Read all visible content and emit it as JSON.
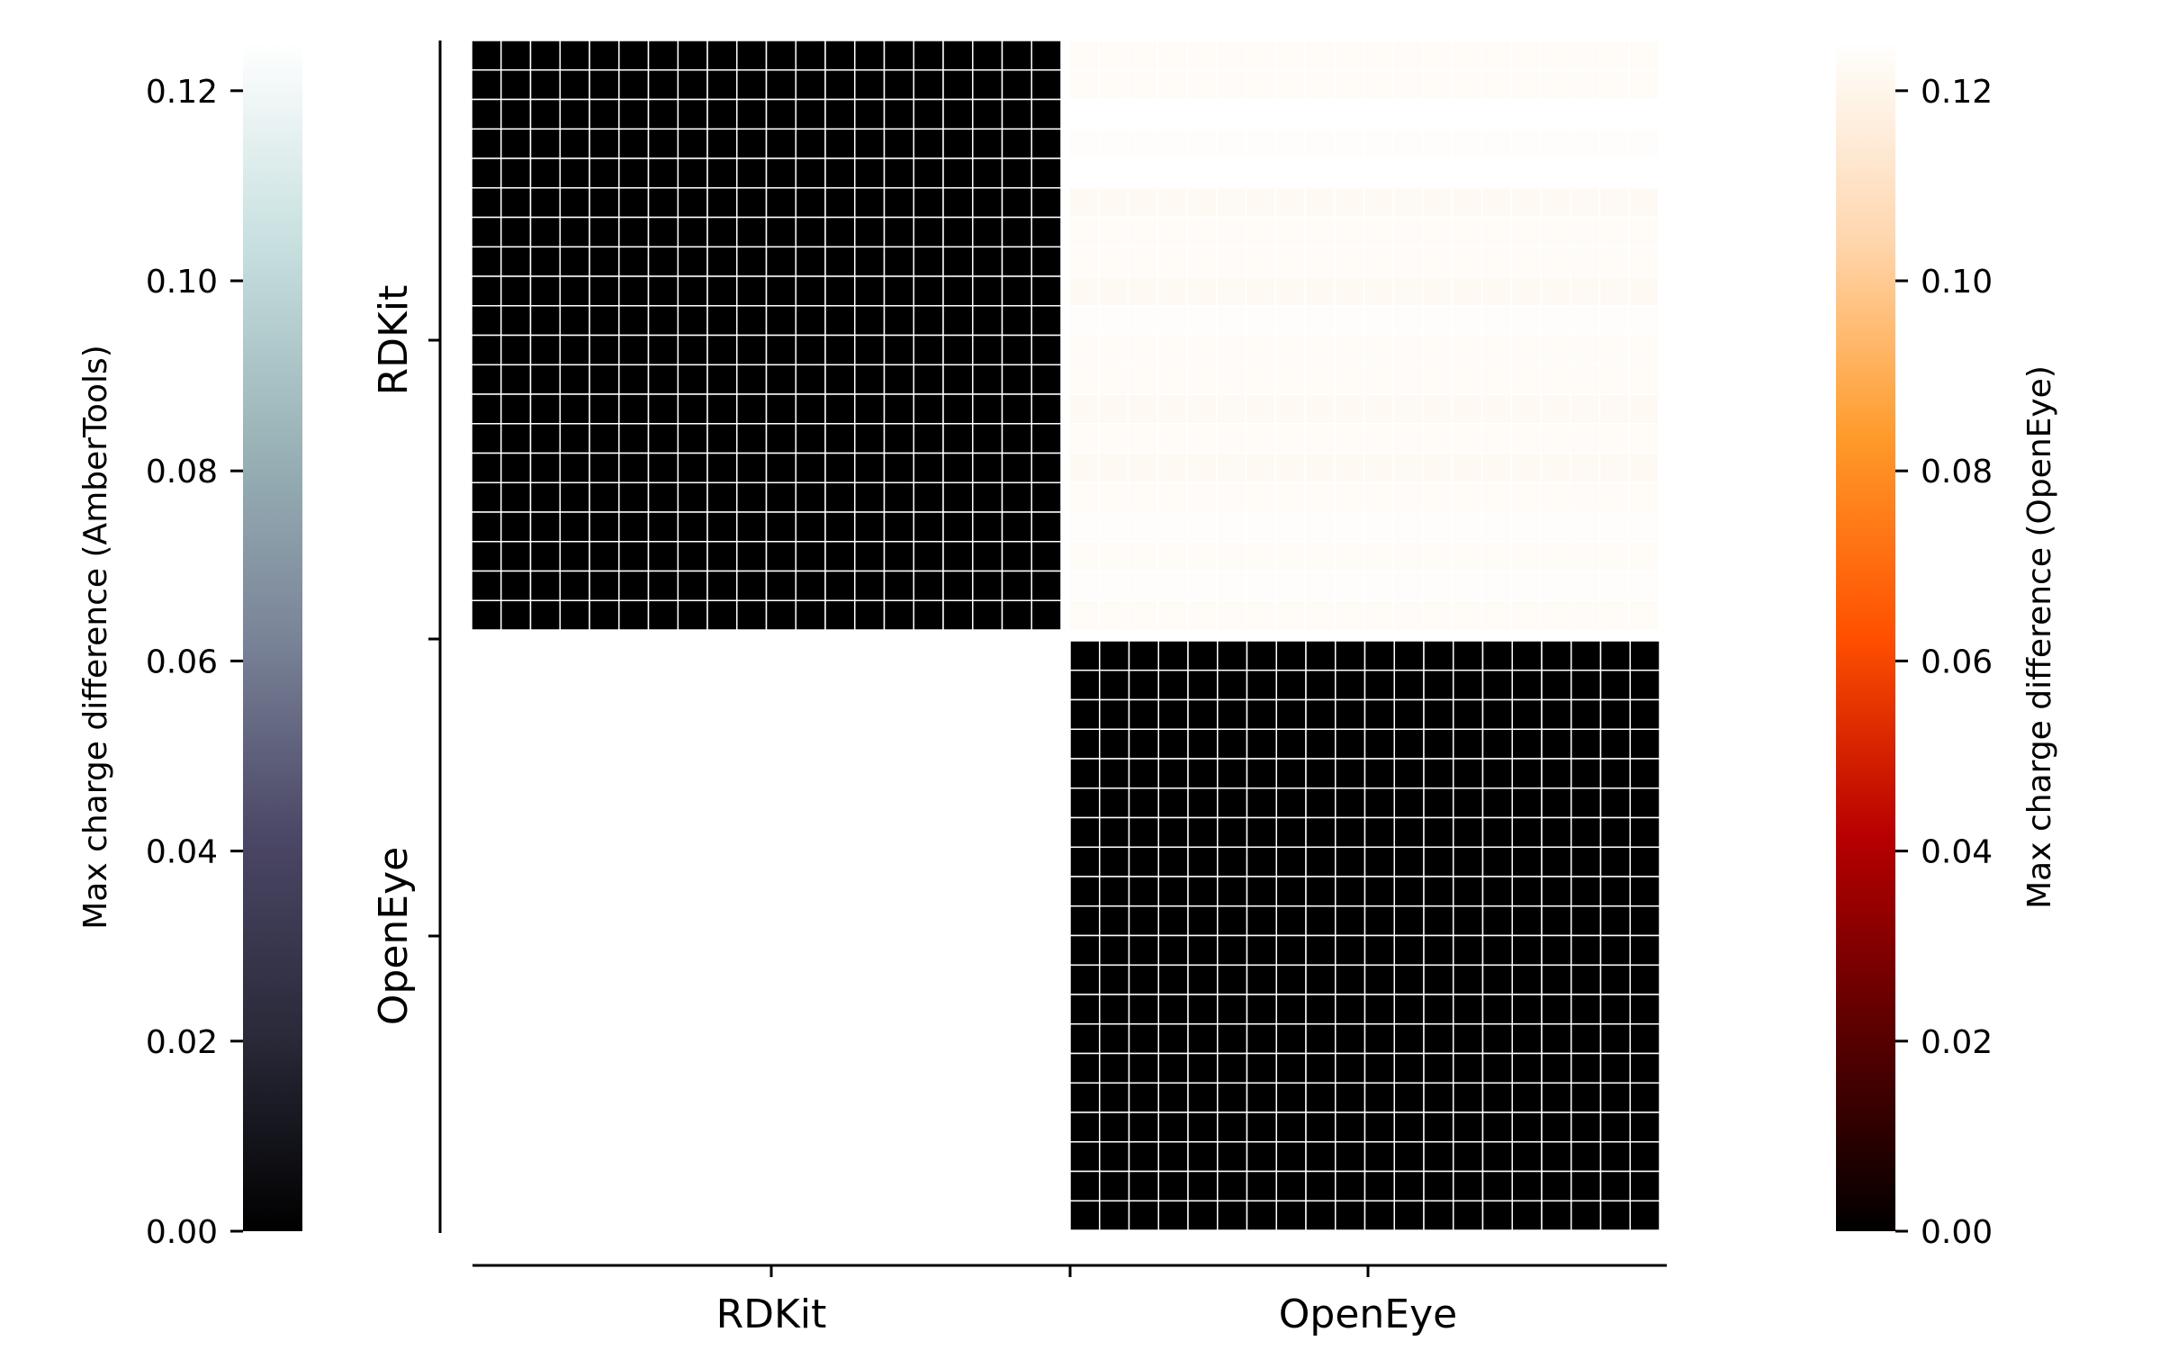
{
  "chart_data": {
    "type": "heatmap",
    "title": "",
    "row_labels": [
      "RDKit",
      "OpenEye"
    ],
    "col_labels": [
      "RDKit",
      "OpenEye"
    ],
    "grid_per_block": 20,
    "blocks": [
      {
        "row": "RDKit",
        "col": "RDKit",
        "colorbar": "AmberTools",
        "fill": "black",
        "value": 0.0
      },
      {
        "row": "RDKit",
        "col": "OpenEye",
        "colorbar": "OpenEye",
        "fill": "very light",
        "row_values": [
          0.123,
          0.123,
          0.125,
          0.124,
          0.125,
          0.122,
          0.123,
          0.123,
          0.122,
          0.124,
          0.123,
          0.123,
          0.122,
          0.123,
          0.122,
          0.123,
          0.124,
          0.123,
          0.124,
          0.123
        ]
      },
      {
        "row": "OpenEye",
        "col": "RDKit",
        "colorbar": "none",
        "fill": "white",
        "value": null
      },
      {
        "row": "OpenEye",
        "col": "OpenEye",
        "colorbar": "OpenEye",
        "fill": "black",
        "value": 0.0
      }
    ],
    "colorbars": [
      {
        "id": "left",
        "label": "Max charge difference (AmberTools)",
        "range": [
          0,
          0.125
        ],
        "ticks": [
          "0.00",
          "0.02",
          "0.04",
          "0.06",
          "0.08",
          "0.10",
          "0.12"
        ],
        "colors": [
          "#000000",
          "#2a2a3a",
          "#4b4766",
          "#7a8498",
          "#9ab4b8",
          "#c8e0e0",
          "#ffffff"
        ]
      },
      {
        "id": "right",
        "label": "Max charge difference (OpenEye)",
        "range": [
          0,
          0.125
        ],
        "ticks": [
          "0.00",
          "0.02",
          "0.04",
          "0.06",
          "0.08",
          "0.10",
          "0.12"
        ],
        "colors": [
          "#000000",
          "#5a0000",
          "#b80000",
          "#ff5000",
          "#ff9a2a",
          "#ffd6ad",
          "#ffffff"
        ]
      }
    ]
  }
}
